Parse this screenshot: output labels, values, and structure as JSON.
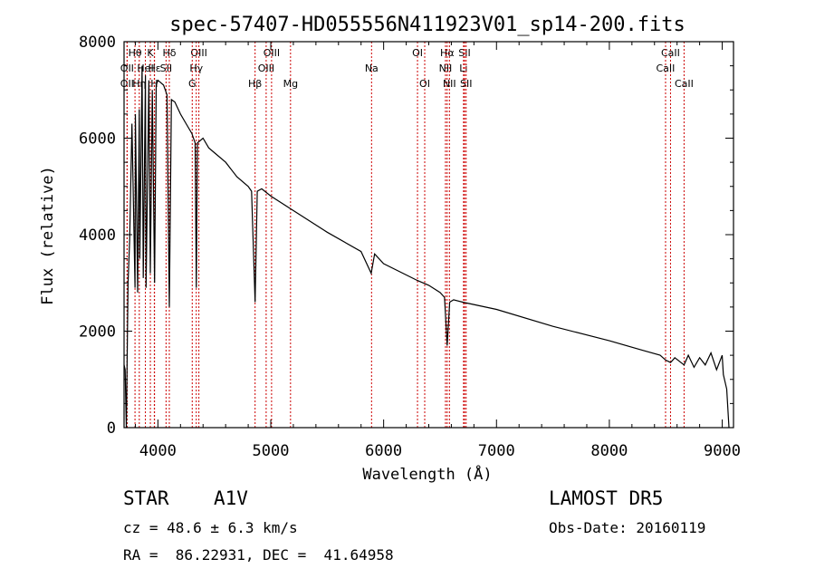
{
  "chart_data": {
    "type": "line",
    "title": "spec-57407-HD055556N411923V01_sp14-200.fits",
    "xlabel": "Wavelength (Å)",
    "ylabel": "Flux (relative)",
    "xlim": [
      3700,
      9100
    ],
    "ylim": [
      0,
      8000
    ],
    "x_ticks": [
      4000,
      5000,
      6000,
      7000,
      8000,
      9000
    ],
    "y_ticks": [
      0,
      2000,
      4000,
      6000,
      8000
    ],
    "grid": false,
    "line_color": "#000000",
    "marker_color": "#cc0000",
    "series": [
      {
        "x": [
          3700,
          3710,
          3720,
          3735,
          3750,
          3770,
          3797,
          3800,
          3820,
          3835,
          3840,
          3860,
          3870,
          3889,
          3895,
          3920,
          3933,
          3950,
          3970,
          3985,
          4000,
          4050,
          4080,
          4101,
          4120,
          4150,
          4200,
          4250,
          4300,
          4330,
          4340,
          4350,
          4400,
          4450,
          4500,
          4600,
          4700,
          4800,
          4830,
          4861,
          4880,
          4920,
          5000,
          5200,
          5500,
          5800,
          5890,
          5920,
          6000,
          6300,
          6400,
          6500,
          6540,
          6563,
          6585,
          6620,
          6700,
          7000,
          7500,
          8000,
          8300,
          8450,
          8498,
          8542,
          8580,
          8662,
          8700,
          8750,
          8800,
          8850,
          8900,
          8950,
          9000,
          9010,
          9040,
          9060
        ],
        "y": [
          1300,
          1200,
          0,
          3000,
          3900,
          6300,
          2900,
          6500,
          2800,
          6600,
          3500,
          7500,
          3100,
          7300,
          2900,
          7200,
          3200,
          7000,
          3000,
          7100,
          7200,
          7100,
          6900,
          2500,
          6800,
          6750,
          6500,
          6300,
          6100,
          5900,
          2900,
          5900,
          6000,
          5800,
          5700,
          5500,
          5200,
          5000,
          4900,
          2600,
          4900,
          4950,
          4800,
          4500,
          4050,
          3650,
          3200,
          3600,
          3400,
          3050,
          2950,
          2800,
          2700,
          1700,
          2600,
          2650,
          2600,
          2450,
          2100,
          1800,
          1600,
          1500,
          1400,
          1350,
          1450,
          1300,
          1500,
          1250,
          1450,
          1300,
          1550,
          1200,
          1500,
          1100,
          800,
          0
        ]
      }
    ],
    "lines": [
      {
        "label": "OII",
        "x": 3727,
        "row": 3
      },
      {
        "label": "Hθ",
        "x": 3797,
        "row": 1
      },
      {
        "label": "OII",
        "x": 3727,
        "row": 2
      },
      {
        "label": "Hη",
        "x": 3835,
        "row": 3
      },
      {
        "label": "HeI",
        "x": 3889,
        "row": 2
      },
      {
        "label": "K",
        "x": 3933,
        "row": 1
      },
      {
        "label": "H",
        "x": 3968,
        "row": 3
      },
      {
        "label": "Hε",
        "x": 3970,
        "row": 2
      },
      {
        "label": "Hδ",
        "x": 4101,
        "row": 1
      },
      {
        "label": "SII",
        "x": 4072,
        "row": 2
      },
      {
        "label": "OIII",
        "x": 4363,
        "row": 1
      },
      {
        "label": "Hγ",
        "x": 4340,
        "row": 2
      },
      {
        "label": "G",
        "x": 4304,
        "row": 3
      },
      {
        "label": "Hβ",
        "x": 4861,
        "row": 3
      },
      {
        "label": "OIII",
        "x": 5007,
        "row": 1
      },
      {
        "label": "OIII",
        "x": 4959,
        "row": 2
      },
      {
        "label": "Mg",
        "x": 5175,
        "row": 3
      },
      {
        "label": "Na",
        "x": 5893,
        "row": 2
      },
      {
        "label": "OI",
        "x": 6300,
        "row": 1
      },
      {
        "label": "OI",
        "x": 6364,
        "row": 3
      },
      {
        "label": "Hα",
        "x": 6563,
        "row": 1
      },
      {
        "label": "NII",
        "x": 6548,
        "row": 2
      },
      {
        "label": "NII",
        "x": 6583,
        "row": 3
      },
      {
        "label": "SII",
        "x": 6717,
        "row": 1
      },
      {
        "label": "Li",
        "x": 6708,
        "row": 2
      },
      {
        "label": "SII",
        "x": 6731,
        "row": 3
      },
      {
        "label": "CaII",
        "x": 8542,
        "row": 1
      },
      {
        "label": "CaII",
        "x": 8498,
        "row": 2
      },
      {
        "label": "CaII",
        "x": 8662,
        "row": 3
      }
    ]
  },
  "info": {
    "object_class": "STAR",
    "subclass": "A1V",
    "survey": "LAMOST DR5",
    "cz": "cz = 48.6 ± 6.3 km/s",
    "obs_date": "Obs-Date: 20160119",
    "coords": "RA =  86.22931, DEC =  41.64958"
  }
}
